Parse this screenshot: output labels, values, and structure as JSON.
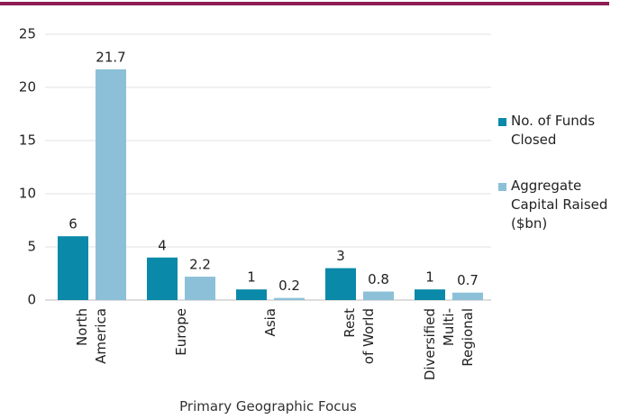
{
  "chart_data": {
    "type": "bar",
    "x_label": "Primary Geographic Focus",
    "categories": [
      "North\nAmerica",
      "Europe",
      "Asia",
      "Rest\nof World",
      "Diversified\nMulti-\nRegional"
    ],
    "series": [
      {
        "name": "No. of Funds Closed",
        "color": "#0a89a9",
        "values": [
          6,
          4,
          1,
          3,
          1
        ]
      },
      {
        "name": "Aggregate Capital Raised ($bn)",
        "color": "#8cc0d8",
        "values": [
          21.7,
          2.2,
          0.2,
          0.8,
          0.7
        ]
      }
    ],
    "ylim": [
      0,
      25
    ],
    "yticks": [
      0,
      5,
      10,
      15,
      20,
      25
    ],
    "grid": true,
    "legend": "right"
  }
}
